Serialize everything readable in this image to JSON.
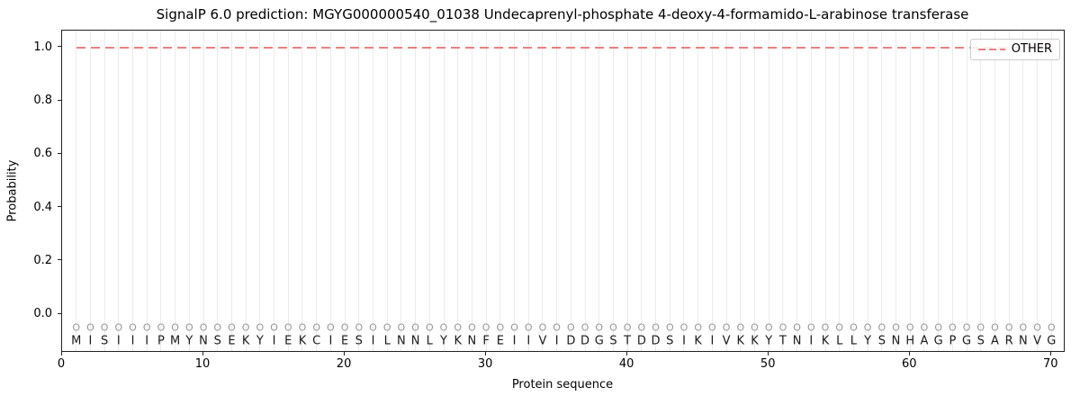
{
  "chart_data": {
    "type": "line",
    "title": "SignalP 6.0 prediction: MGYG000000540_01038 Undecaprenyl-phosphate 4-deoxy-4-formamido-L-arabinose transferase",
    "xlabel": "Protein sequence",
    "ylabel": "Probability",
    "xlim": [
      0,
      71
    ],
    "ylim": [
      -0.145,
      1.064
    ],
    "x_ticks": [
      0,
      10,
      20,
      30,
      40,
      50,
      60,
      70
    ],
    "y_ticks": [
      "0.0",
      "0.2",
      "0.4",
      "0.6",
      "0.8",
      "1.0"
    ],
    "grid": "light vertical gridline at each residue position 1-70",
    "legend": {
      "position": "upper right",
      "entries": [
        {
          "label": "OTHER",
          "color": "#ee8080",
          "linestyle": "dashed"
        }
      ]
    },
    "series": [
      {
        "name": "OTHER",
        "linestyle": "dashed",
        "color": "#ee8080",
        "x_range": [
          1,
          70
        ],
        "constant_value": 1.0
      }
    ],
    "sequence": "MISIIIPMYNSEKYIEKCIESILNNLYKNFEIIVIDDGSTDDSIKIVKKYTNIKLLYSNHAGPGSARNVG",
    "per_residue_label": "O",
    "per_residue_label_y": -0.05,
    "sequence_letter_y": -0.102
  },
  "colors": {
    "line_other": "#ee8080",
    "grid": "#ebebeb",
    "marker_gray": "#969696",
    "letter_text": "#1a1a1a",
    "spine": "#222222",
    "legend_border": "#cccccc"
  }
}
